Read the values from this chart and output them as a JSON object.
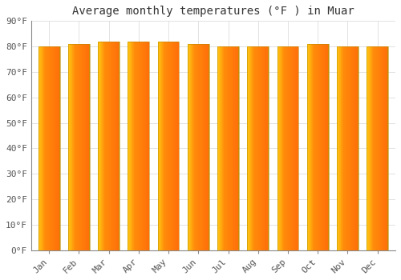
{
  "title": "Average monthly temperatures (°F ) in Muar",
  "months": [
    "Jan",
    "Feb",
    "Mar",
    "Apr",
    "May",
    "Jun",
    "Jul",
    "Aug",
    "Sep",
    "Oct",
    "Nov",
    "Dec"
  ],
  "values": [
    80,
    81,
    82,
    82,
    82,
    81,
    80,
    80,
    80,
    81,
    80,
    80
  ],
  "bar_color_left": "#FFCC44",
  "bar_color_mid": "#FFAA00",
  "bar_color_right": "#E8880A",
  "bar_edge_color": "#CC7700",
  "background_color": "#FFFFFF",
  "plot_bg_color": "#FFFFFF",
  "grid_color": "#DDDDDD",
  "ylim": [
    0,
    90
  ],
  "yticks": [
    0,
    10,
    20,
    30,
    40,
    50,
    60,
    70,
    80,
    90
  ],
  "ytick_labels": [
    "0°F",
    "10°F",
    "20°F",
    "30°F",
    "40°F",
    "50°F",
    "60°F",
    "70°F",
    "80°F",
    "90°F"
  ],
  "title_fontsize": 10,
  "tick_fontsize": 8,
  "bar_width": 0.72,
  "fig_width": 5.0,
  "fig_height": 3.5,
  "dpi": 100
}
